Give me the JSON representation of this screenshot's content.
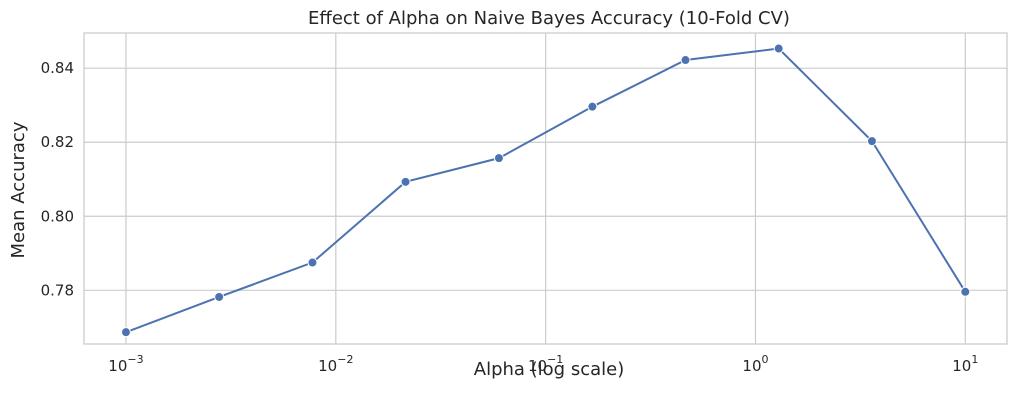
{
  "chart_data": {
    "type": "line",
    "title": "Effect of Alpha on Naive Bayes Accuracy (10-Fold CV)",
    "xlabel": "Alpha (log scale)",
    "ylabel": "Mean Accuracy",
    "x_scale": "log",
    "xlim": [
      0.000631,
      15.8
    ],
    "ylim": [
      0.7655,
      0.8495
    ],
    "x_ticks": [
      {
        "value": 0.001,
        "base": "10",
        "exp": "−3"
      },
      {
        "value": 0.01,
        "base": "10",
        "exp": "−2"
      },
      {
        "value": 0.1,
        "base": "10",
        "exp": "−1"
      },
      {
        "value": 1,
        "base": "10",
        "exp": "0"
      },
      {
        "value": 10,
        "base": "10",
        "exp": "1"
      }
    ],
    "y_ticks": [
      {
        "value": 0.78,
        "label": "0.78"
      },
      {
        "value": 0.8,
        "label": "0.80"
      },
      {
        "value": 0.82,
        "label": "0.82"
      },
      {
        "value": 0.84,
        "label": "0.84"
      }
    ],
    "grid": true,
    "color": "#4c72b0",
    "series": [
      {
        "x": [
          0.001,
          0.00278,
          0.00774,
          0.0215,
          0.0599,
          0.167,
          0.464,
          1.29,
          3.59,
          10
        ],
        "y": [
          0.7687,
          0.7782,
          0.7875,
          0.8093,
          0.8157,
          0.8296,
          0.8422,
          0.8453,
          0.8203,
          0.7796
        ]
      }
    ]
  }
}
